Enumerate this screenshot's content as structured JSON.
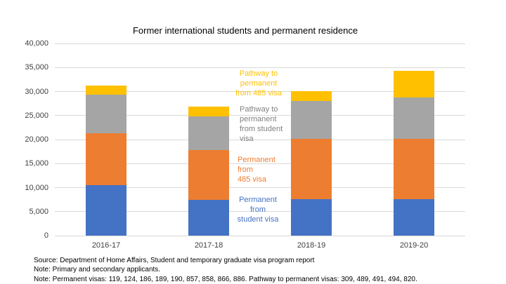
{
  "title": "Former international students and permanent residence",
  "chart_data": {
    "type": "bar",
    "stacked": true,
    "title": "Former international students and permanent residence",
    "categories": [
      "2016-17",
      "2017-18",
      "2018-19",
      "2019-20"
    ],
    "series": [
      {
        "name": "Permanent from student visa",
        "color": "#4472C4",
        "values": [
          10500,
          7500,
          7600,
          7600
        ]
      },
      {
        "name": "Permanent from 485 visa",
        "color": "#ED7D31",
        "values": [
          10800,
          10300,
          12500,
          12500
        ]
      },
      {
        "name": "Pathway to permanent from student visa",
        "color": "#A5A5A5",
        "values": [
          8100,
          7000,
          7900,
          8600
        ]
      },
      {
        "name": "Pathway to permanent from 485 visa",
        "color": "#FFC000",
        "values": [
          1900,
          2000,
          2100,
          5600
        ]
      }
    ],
    "ylim": [
      0,
      40000
    ],
    "ytick_step": 5000,
    "ytick_labels": [
      "40,000",
      "35,000",
      "30,000",
      "25,000",
      "20,000",
      "15,000",
      "10,000",
      "5,000",
      "0"
    ],
    "grid": true,
    "legend_position": "inside plot, stacked text labels right of 2017-18 bar"
  },
  "series_labels": [
    {
      "id": "pathway-485",
      "lines": [
        "Pathway to",
        "permanent",
        "from 485 visa"
      ],
      "color": "#FFC000"
    },
    {
      "id": "pathway-student",
      "lines": [
        "Pathway to",
        "permanent",
        "from student",
        "visa"
      ],
      "color": "#808080"
    },
    {
      "id": "permanent-485",
      "lines": [
        "Permanent",
        "from",
        "485 visa"
      ],
      "color": "#ED7D31"
    },
    {
      "id": "permanent-student",
      "lines": [
        "Permanent",
        "from",
        "student visa"
      ],
      "color": "#4472C4"
    }
  ],
  "footer": {
    "lines": [
      "Source: Department of Home Affairs, Student and temporary graduate visa program report",
      "Note: Primary and secondary applicants.",
      "Note: Permanent visas: 119, 124, 186, 189, 190, 857, 858, 866, 886. Pathway to permanent visas: 309, 489, 491, 494, 820."
    ]
  },
  "colors": {
    "grid": "#D9D9D9",
    "axis_text": "#404040",
    "background": "#FFFFFF"
  }
}
